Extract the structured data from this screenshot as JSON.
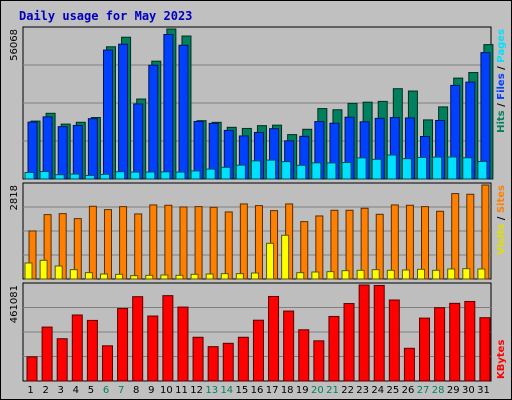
{
  "chart_data": {
    "type": "bar",
    "title": "Daily usage for May 2023",
    "categories": [
      "1",
      "2",
      "3",
      "4",
      "5",
      "6",
      "7",
      "8",
      "9",
      "10",
      "11",
      "12",
      "13",
      "14",
      "15",
      "16",
      "17",
      "18",
      "19",
      "20",
      "21",
      "22",
      "23",
      "24",
      "25",
      "26",
      "27",
      "28",
      "29",
      "30",
      "31"
    ],
    "weekend_days": [
      "6",
      "7",
      "13",
      "14",
      "20",
      "21",
      "27",
      "28"
    ],
    "panels": [
      {
        "name": "hits-files-pages",
        "max_label": "56068",
        "ylim": [
          0,
          56068
        ],
        "legend": [
          "Pages",
          "Files",
          "Hits"
        ],
        "series": [
          {
            "name": "Hits",
            "color": "#00805c",
            "values": [
              21640,
              24560,
              20520,
              21200,
              22970,
              49420,
              52990,
              29890,
              44040,
              56068,
              53440,
              21800,
              21190,
              19320,
              18890,
              19940,
              20120,
              16600,
              18580,
              26320,
              25880,
              28270,
              28710,
              29010,
              33750,
              32880,
              22090,
              26950,
              37710,
              39800,
              50230
            ]
          },
          {
            "name": "Files",
            "color": "#0040ff",
            "values": [
              21260,
              23230,
              19560,
              20000,
              22550,
              48190,
              50380,
              28040,
              42530,
              54010,
              49990,
              21500,
              20800,
              18150,
              16090,
              17390,
              18810,
              14280,
              15950,
              21470,
              20840,
              23090,
              21390,
              22660,
              22960,
              22820,
              15890,
              21870,
              34990,
              36210,
              47250
            ]
          },
          {
            "name": "Pages",
            "color": "#00e0ff",
            "values": [
              2430,
              2800,
              1600,
              1830,
              1340,
              1730,
              2720,
              2590,
              2620,
              2680,
              2590,
              3030,
              3700,
              4370,
              5170,
              6780,
              7070,
              6490,
              5120,
              6040,
              6020,
              6160,
              7900,
              7360,
              8950,
              7600,
              8060,
              8180,
              8220,
              7940,
              6550
            ]
          }
        ]
      },
      {
        "name": "sites-visits",
        "max_label": "2818",
        "ylim": [
          0,
          2818
        ],
        "legend": [
          "Sites",
          "/",
          "Visits"
        ],
        "series": [
          {
            "name": "Visits",
            "color": "#ff8000",
            "values": [
              1440,
              1930,
              1960,
              1810,
              2180,
              2080,
              2170,
              1950,
              2220,
              2210,
              2160,
              2170,
              2150,
              2010,
              2250,
              2200,
              2050,
              2250,
              1720,
              1890,
              2060,
              2060,
              2120,
              1940,
              2220,
              2210,
              2170,
              2030,
              2560,
              2540,
              2818
            ]
          },
          {
            "name": "Sites",
            "color": "#ffff00",
            "values": [
              480,
              560,
              390,
              280,
              190,
              150,
              140,
              100,
              110,
              120,
              110,
              140,
              150,
              160,
              160,
              180,
              1070,
              1310,
              190,
              210,
              220,
              250,
              260,
              280,
              260,
              270,
              290,
              260,
              300,
              310,
              300
            ]
          }
        ]
      },
      {
        "name": "kbytes",
        "max_label": "461081",
        "ylim": [
          0,
          461081
        ],
        "legend": [
          "KBytes"
        ],
        "series": [
          {
            "name": "KBytes",
            "color": "#ff0000",
            "values": [
              116000,
              259000,
              203000,
              317000,
              291000,
              169000,
              348000,
              405000,
              312000,
              410000,
              355000,
              210000,
              165000,
              181000,
              210000,
              292000,
              406000,
              336000,
              246000,
              193000,
              310000,
              372000,
              461081,
              459000,
              389000,
              157000,
              302000,
              352000,
              373000,
              382000,
              304000
            ]
          }
        ]
      }
    ]
  }
}
